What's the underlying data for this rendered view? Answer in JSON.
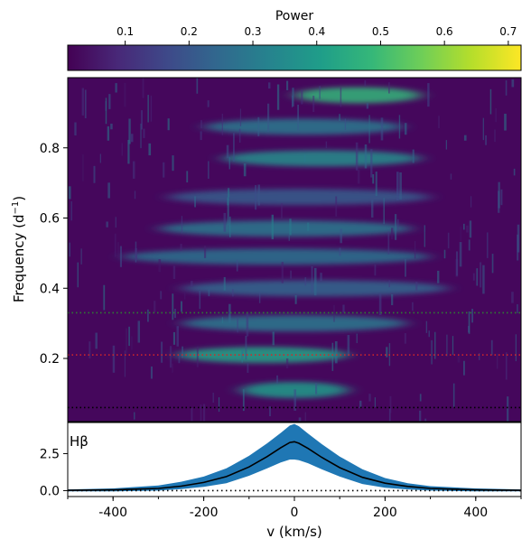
{
  "chart_data": [
    {
      "type": "heatmap",
      "panel": "periodogram",
      "colorbar": {
        "label": "Power",
        "ticks": [
          "0.1",
          "0.2",
          "0.3",
          "0.4",
          "0.5",
          "0.6",
          "0.7"
        ],
        "tick_values": [
          0.1,
          0.2,
          0.3,
          0.4,
          0.5,
          0.6,
          0.7
        ],
        "range": [
          0.01,
          0.72
        ],
        "colormap": "viridis",
        "colors": [
          "#440154",
          "#482878",
          "#3e4989",
          "#31688e",
          "#26828e",
          "#1f9e89",
          "#35b779",
          "#6ece58",
          "#b5de2b",
          "#fde725"
        ]
      },
      "ylabel": "Frequency (d$^{-1}$)",
      "ylabel_text": "Frequency (d",
      "ylabel_sup": "−1",
      "ylabel_close": ")",
      "ylim": [
        0.02,
        1.0
      ],
      "yticks": [
        "0.2",
        "0.4",
        "0.6",
        "0.8"
      ],
      "ytick_values": [
        0.2,
        0.4,
        0.6,
        0.8
      ],
      "xlim": [
        -500,
        500
      ],
      "horizontal_lines": [
        {
          "freq": 0.33,
          "color": "#2e7d32",
          "style": "dotted"
        },
        {
          "freq": 0.21,
          "color": "#d62728",
          "style": "dotted"
        },
        {
          "freq": 0.06,
          "color": "#000000",
          "style": "dotted"
        }
      ],
      "bands": [
        {
          "freq": 0.95,
          "power": 0.48,
          "vmin": 0,
          "vmax": 280
        },
        {
          "freq": 0.86,
          "power": 0.3,
          "vmin": -200,
          "vmax": 240
        },
        {
          "freq": 0.77,
          "power": 0.36,
          "vmin": -160,
          "vmax": 280
        },
        {
          "freq": 0.66,
          "power": 0.22,
          "vmin": -280,
          "vmax": 300
        },
        {
          "freq": 0.57,
          "power": 0.3,
          "vmin": -300,
          "vmax": 260
        },
        {
          "freq": 0.49,
          "power": 0.28,
          "vmin": -380,
          "vmax": 300
        },
        {
          "freq": 0.4,
          "power": 0.25,
          "vmin": -250,
          "vmax": 340
        },
        {
          "freq": 0.3,
          "power": 0.3,
          "vmin": -250,
          "vmax": 250
        },
        {
          "freq": 0.21,
          "power": 0.42,
          "vmin": -260,
          "vmax": 120
        },
        {
          "freq": 0.11,
          "power": 0.4,
          "vmin": -120,
          "vmax": 120
        }
      ]
    },
    {
      "type": "line",
      "panel": "line-profile",
      "annotation": "Hβ",
      "xlabel": "v (km/s)",
      "xlim": [
        -500,
        500
      ],
      "xticks": [
        "-400",
        "-200",
        "0",
        "200",
        "400"
      ],
      "xtick_values": [
        -400,
        -200,
        0,
        200,
        400
      ],
      "ylim": [
        -0.4,
        4.6
      ],
      "yticks": [
        "0.0",
        "2.5"
      ],
      "ytick_values": [
        0.0,
        2.5
      ],
      "zero_line": {
        "y": 0.0,
        "style": "dotted",
        "color": "#000000"
      },
      "series": [
        {
          "style": "line",
          "color": "#000000",
          "x": [
            -500,
            -400,
            -300,
            -250,
            -200,
            -150,
            -100,
            -60,
            -30,
            -10,
            0,
            10,
            30,
            60,
            100,
            150,
            200,
            250,
            300,
            400,
            500
          ],
          "y": [
            0.02,
            0.05,
            0.15,
            0.3,
            0.55,
            0.95,
            1.6,
            2.3,
            2.9,
            3.25,
            3.3,
            3.2,
            2.85,
            2.25,
            1.55,
            0.9,
            0.5,
            0.28,
            0.15,
            0.05,
            0.02
          ]
        },
        {
          "style": "band",
          "color": "#1f77b4",
          "x": [
            -500,
            -400,
            -300,
            -250,
            -200,
            -150,
            -100,
            -60,
            -30,
            -10,
            0,
            10,
            30,
            60,
            100,
            150,
            200,
            250,
            300,
            400,
            500
          ],
          "lower": [
            -0.05,
            -0.05,
            0.0,
            0.1,
            0.25,
            0.5,
            1.0,
            1.5,
            1.9,
            2.1,
            2.1,
            2.05,
            1.85,
            1.45,
            0.95,
            0.45,
            0.2,
            0.08,
            0.0,
            -0.05,
            -0.05
          ],
          "upper": [
            0.08,
            0.15,
            0.35,
            0.6,
            0.95,
            1.5,
            2.35,
            3.2,
            3.9,
            4.4,
            4.5,
            4.35,
            3.85,
            3.15,
            2.3,
            1.45,
            0.85,
            0.5,
            0.3,
            0.15,
            0.08
          ]
        }
      ]
    }
  ]
}
